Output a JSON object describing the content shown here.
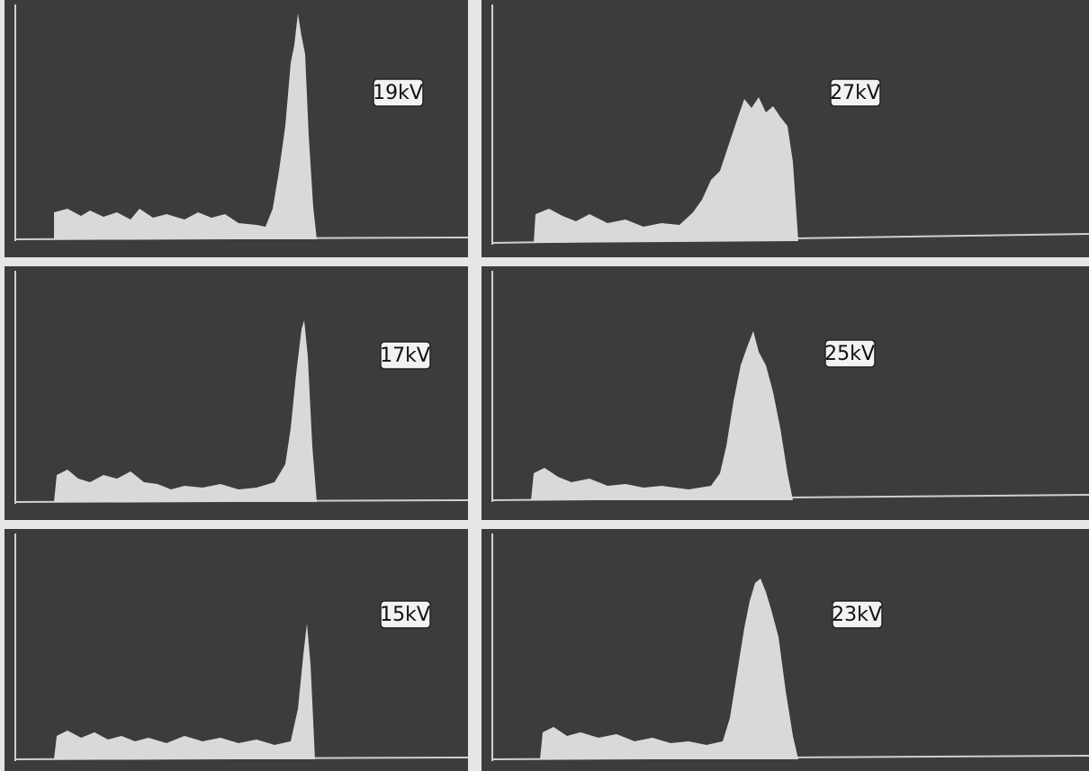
{
  "panels": [
    {
      "label": "19kV"
    },
    {
      "label": "27kV"
    },
    {
      "label": "17kV"
    },
    {
      "label": "25kV"
    },
    {
      "label": "15kV"
    },
    {
      "label": "23kV"
    }
  ]
}
